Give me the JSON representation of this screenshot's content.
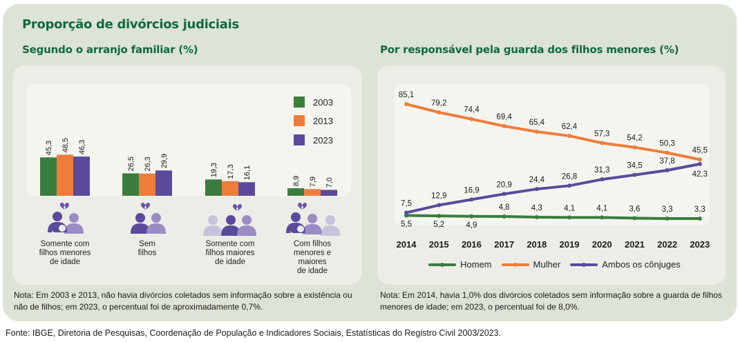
{
  "main_title": "Proporção de divórcios judiciais",
  "left": {
    "subtitle": "Segundo o arranjo familiar (%)",
    "note": "Nota: Em 2003 e 2013, não havia divórcios coletados sem informação sobre a existência ou não de filhos; em 2023, o percentual foi de aproximadamente 0,7%.",
    "icons": [
      "broken-heart-parent-with-baby-and-partner-icon",
      "broken-heart-two-persons-icon",
      "broken-heart-two-persons-with-adult-child-icon",
      "broken-heart-parent-with-baby-partner-and-adult-child-icon"
    ]
  },
  "right": {
    "subtitle": "Por responsável pela guarda dos filhos menores (%)",
    "note": "Nota: Em 2014, havia 1,0% dos divórcios coletados sem informação sobre a guarda de filhos menores de idade; em 2023, o percentual foi de 8,0%."
  },
  "source": "Fonte: IBGE, Diretoria de Pesquisas, Coordenação de População e Indicadores Sociais, Estatísticas do Registro Civil 2003/2023.",
  "colors": {
    "green": "#3a7d3e",
    "orange": "#ee7d3c",
    "purple": "#5b4a9b",
    "title_green": "#0e6b3c"
  },
  "chart_data": [
    {
      "type": "bar",
      "title": "Segundo o arranjo familiar (%)",
      "categories": [
        "Somente com filhos menores de idade",
        "Sem filhos",
        "Somente com filhos maiores de idade",
        "Com filhos menores e maiores de idade"
      ],
      "category_lines": [
        [
          "Somente com",
          "filhos menores",
          "de idade"
        ],
        [
          "Sem",
          "filhos"
        ],
        [
          "Somente com",
          "filhos maiores",
          "de idade"
        ],
        [
          "Com filhos",
          "menores e",
          "maiores",
          "de idade"
        ]
      ],
      "series": [
        {
          "name": "2003",
          "color": "#3a7d3e",
          "values": [
            45.3,
            26.5,
            19.3,
            8.9
          ],
          "labels": [
            "45,3",
            "26,5",
            "19,3",
            "8,9"
          ]
        },
        {
          "name": "2013",
          "color": "#ee7d3c",
          "values": [
            48.5,
            26.3,
            17.3,
            7.9
          ],
          "labels": [
            "48,5",
            "26,3",
            "17,3",
            "7,9"
          ]
        },
        {
          "name": "2023",
          "color": "#5b4a9b",
          "values": [
            46.3,
            29.9,
            16.1,
            7.0
          ],
          "labels": [
            "46,3",
            "29,9",
            "16,1",
            "7,0"
          ]
        }
      ],
      "legend": "top-right",
      "ylim": [
        0,
        50
      ],
      "grid": false
    },
    {
      "type": "line",
      "title": "Por responsável pela guarda dos filhos menores (%)",
      "x": [
        "2014",
        "2015",
        "2016",
        "2017",
        "2018",
        "2019",
        "2020",
        "2021",
        "2022",
        "2023"
      ],
      "series": [
        {
          "name": "Homem",
          "color": "#3a7d3e",
          "values": [
            5.5,
            5.2,
            4.9,
            4.8,
            4.3,
            4.1,
            4.1,
            3.6,
            3.3,
            3.3
          ],
          "labels": [
            "5,5",
            "5,2",
            "4,9",
            "4,8",
            "4,3",
            "4,1",
            "4,1",
            "3,6",
            "3,3",
            "3,3"
          ]
        },
        {
          "name": "Mulher",
          "color": "#ee7d3c",
          "values": [
            85.1,
            79.2,
            74.4,
            69.4,
            65.4,
            62.4,
            57.3,
            54.2,
            50.3,
            45.5
          ],
          "labels": [
            "85,1",
            "79,2",
            "74,4",
            "69,4",
            "65,4",
            "62,4",
            "57,3",
            "54,2",
            "50,3",
            "45,5"
          ]
        },
        {
          "name": "Ambos os cônjuges",
          "color": "#5b4a9b",
          "values": [
            7.5,
            12.9,
            16.9,
            20.9,
            24.4,
            26.8,
            31.3,
            34.5,
            37.8,
            42.3
          ],
          "labels": [
            "7,5",
            "12,9",
            "16,9",
            "20,9",
            "24,4",
            "26,8",
            "31,3",
            "34,5",
            "37,8",
            "42,3"
          ]
        }
      ],
      "legend": "bottom",
      "ylim": [
        0,
        90
      ],
      "grid": false
    }
  ]
}
